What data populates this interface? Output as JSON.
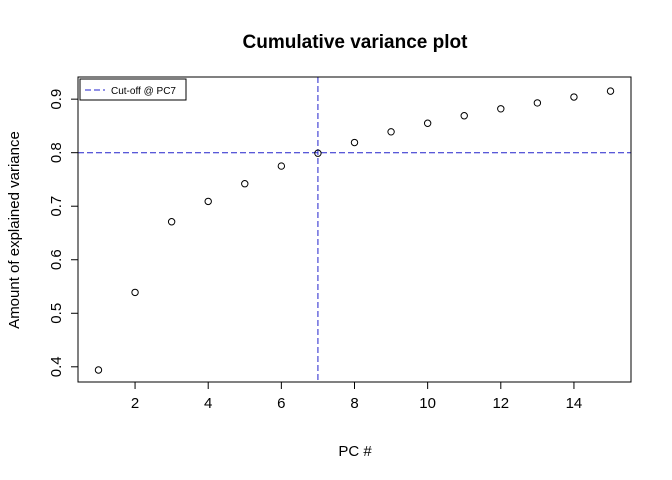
{
  "chart_data": {
    "type": "scatter",
    "title": "Cumulative variance plot",
    "xlabel": "PC #",
    "ylabel": "Amount of explained variance",
    "xlim": [
      0.44,
      15.56
    ],
    "ylim": [
      0.3716,
      0.9414
    ],
    "xticks": [
      2,
      4,
      6,
      8,
      10,
      12,
      14
    ],
    "yticks": [
      0.4,
      0.5,
      0.6,
      0.7,
      0.8,
      0.9
    ],
    "x": [
      1,
      2,
      3,
      4,
      5,
      6,
      7,
      8,
      9,
      10,
      11,
      12,
      13,
      14,
      15
    ],
    "y": [
      0.394,
      0.539,
      0.671,
      0.709,
      0.742,
      0.775,
      0.799,
      0.819,
      0.839,
      0.855,
      0.869,
      0.882,
      0.893,
      0.904,
      0.915
    ],
    "reference_lines": {
      "vertical_x": 7,
      "horizontal_y": 0.8,
      "color": "#2222cc",
      "style": "dashed"
    },
    "legend": {
      "position": "top-left",
      "entries": [
        "Cut-off @ PC7"
      ]
    },
    "grid": false
  }
}
